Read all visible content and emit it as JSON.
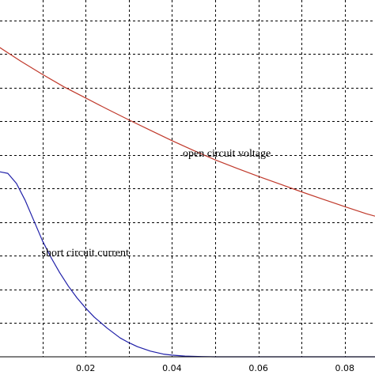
{
  "chart_data": {
    "type": "line",
    "title": "",
    "xlabel": "",
    "ylabel": "",
    "xlim": [
      0.0,
      0.087
    ],
    "ylim": [
      0,
      10.6
    ],
    "grid": true,
    "x_ticks": [
      0.02,
      0.04,
      0.06,
      0.08
    ],
    "x_tick_labels": [
      "0.02",
      "0.04",
      "0.06",
      "0.08"
    ],
    "y_gridlines": [
      1,
      2,
      3,
      4,
      5,
      6,
      7,
      8,
      9,
      10
    ],
    "series": [
      {
        "key": "voltage",
        "color": "#c0392b",
        "x": [
          0.0,
          0.005,
          0.01,
          0.015,
          0.02,
          0.025,
          0.03,
          0.035,
          0.04,
          0.045,
          0.05,
          0.055,
          0.06,
          0.065,
          0.07,
          0.075,
          0.08,
          0.085,
          0.087
        ],
        "y": [
          9.2,
          8.78,
          8.39,
          8.02,
          7.69,
          7.36,
          7.04,
          6.73,
          6.42,
          6.13,
          5.85,
          5.6,
          5.36,
          5.13,
          4.9,
          4.68,
          4.46,
          4.25,
          4.18
        ]
      },
      {
        "key": "current",
        "color": "#1f1fa8",
        "x": [
          0.0,
          0.002,
          0.004,
          0.006,
          0.008,
          0.01,
          0.012,
          0.014,
          0.016,
          0.018,
          0.02,
          0.022,
          0.025,
          0.028,
          0.03,
          0.032,
          0.035,
          0.038,
          0.04,
          0.043,
          0.046,
          0.05,
          0.055,
          0.06,
          0.07,
          0.08,
          0.087
        ],
        "y": [
          5.5,
          5.45,
          5.15,
          4.65,
          4.05,
          3.45,
          2.95,
          2.5,
          2.1,
          1.75,
          1.45,
          1.18,
          0.85,
          0.56,
          0.42,
          0.3,
          0.17,
          0.08,
          0.05,
          0.02,
          0.01,
          0.0,
          0.0,
          0.0,
          0.0,
          0.0,
          0.0
        ]
      }
    ],
    "annotations": [
      {
        "text": "open circuit voltage",
        "x": 0.0425,
        "y": 5.95
      },
      {
        "text": "short circuit current",
        "x": 0.0098,
        "y": 3.0
      }
    ]
  }
}
